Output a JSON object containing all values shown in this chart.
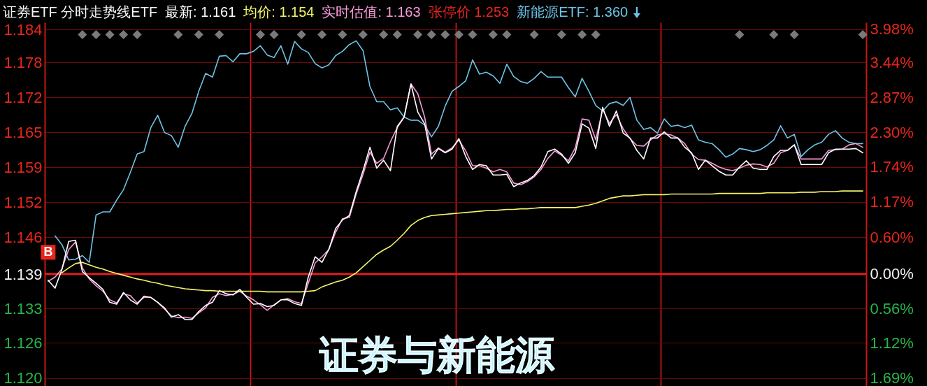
{
  "chart_data": {
    "type": "line",
    "title": "证券ETF 分时走势线ETF",
    "annotations": [
      "张停价 1.253",
      {
        "text": "B",
        "y": 0
      },
      "证券与新能源"
    ],
    "categories": [
      null,
      null,
      null,
      null,
      null,
      null,
      null,
      null,
      null,
      null,
      null,
      null,
      null,
      null,
      null,
      null,
      null,
      null,
      null,
      null,
      null,
      null,
      null,
      null,
      null,
      null,
      null,
      null,
      null,
      null,
      null,
      null,
      null,
      null,
      null,
      null,
      null,
      null,
      null,
      null,
      null,
      null,
      null,
      null,
      null,
      null,
      null,
      null,
      null,
      null,
      null,
      null,
      null,
      null,
      null,
      null,
      null,
      null,
      null,
      null,
      null,
      null,
      null,
      null,
      null,
      null,
      null,
      null,
      null,
      null,
      null,
      null,
      null,
      null,
      null,
      null,
      null,
      null,
      null,
      null,
      null,
      null,
      null,
      null,
      null,
      null,
      null,
      null,
      null,
      null,
      null,
      null,
      null,
      null,
      null,
      null,
      null,
      null,
      null,
      null,
      null,
      null,
      null,
      null,
      null,
      null,
      null,
      null,
      null,
      null,
      null,
      null,
      null,
      null,
      null,
      null,
      null,
      null,
      null,
      null
    ],
    "ylim": [
      -1.82,
      4.09
    ],
    "yticks": [
      {
        "value": 3.98,
        "label": "3.98%"
      },
      {
        "value": 3.44,
        "label": "3.44%"
      },
      {
        "value": 2.87,
        "label": "2.87%"
      },
      {
        "value": 2.3,
        "label": "2.30%"
      },
      {
        "value": 1.74,
        "label": "1.74%"
      },
      {
        "value": 1.17,
        "label": "1.17%"
      },
      {
        "value": 0.6,
        "label": "0.60%"
      },
      {
        "value": 0,
        "label": "0.00%"
      },
      {
        "value": -0.56,
        "label": "0.56%"
      },
      {
        "value": -1.12,
        "label": "1.12%"
      },
      {
        "value": -1.69,
        "label": "1.69%"
      }
    ],
    "y2lim": [
      1.1183,
      1.1856
    ],
    "y2ticks": [
      {
        "value": 1.1843,
        "label": "1.184"
      },
      {
        "value": 1.1782,
        "label": "1.178"
      },
      {
        "value": 1.1717,
        "label": "1.172"
      },
      {
        "value": 1.1652,
        "label": "1.165"
      },
      {
        "value": 1.1588,
        "label": "1.159"
      },
      {
        "value": 1.1523,
        "label": "1.152"
      },
      {
        "value": 1.1458,
        "label": "1.146"
      },
      {
        "value": 1.139,
        "label": "1.139"
      },
      {
        "value": 1.1326,
        "label": "1.133"
      },
      {
        "value": 1.1262,
        "label": "1.126"
      },
      {
        "value": 1.1198,
        "label": "1.120"
      }
    ],
    "tick_labels": "y",
    "grid": true,
    "legend": "top",
    "ref_lines": [
      {
        "axis": "y",
        "value": 0,
        "color": "#e3191b"
      }
    ],
    "series": [
      {
        "name": "最新: 1.161",
        "color": "#ffffff",
        "values": [
          -0.1,
          -0.23,
          0.07,
          0.53,
          0.55,
          0.04,
          -0.06,
          -0.15,
          -0.25,
          -0.46,
          -0.49,
          -0.3,
          -0.42,
          -0.49,
          -0.36,
          -0.38,
          -0.46,
          -0.55,
          -0.7,
          -0.66,
          -0.74,
          -0.74,
          -0.61,
          -0.51,
          -0.46,
          -0.27,
          -0.32,
          -0.34,
          -0.25,
          -0.38,
          -0.49,
          -0.48,
          -0.53,
          -0.51,
          -0.42,
          -0.42,
          -0.48,
          -0.51,
          -0.05,
          0.28,
          0.19,
          0.4,
          0.74,
          0.88,
          0.95,
          1.34,
          1.68,
          2.06,
          1.72,
          1.85,
          1.68,
          2.4,
          2.55,
          3.09,
          2.63,
          2.44,
          1.87,
          2.04,
          1.97,
          2.03,
          2.2,
          1.91,
          1.7,
          1.78,
          1.76,
          1.61,
          1.61,
          1.62,
          1.42,
          1.48,
          1.52,
          1.6,
          1.74,
          1.99,
          2.03,
          1.95,
          1.8,
          1.97,
          2.44,
          2.37,
          2.04,
          2.71,
          2.4,
          2.65,
          2.29,
          2.21,
          2.01,
          1.87,
          2.21,
          2.21,
          2.31,
          2.21,
          2.21,
          2.06,
          1.97,
          1.7,
          1.85,
          1.76,
          1.67,
          1.61,
          1.61,
          1.74,
          1.84,
          1.72,
          1.7,
          1.7,
          1.91,
          2.01,
          2.01,
          2.1,
          1.78,
          1.78,
          1.78,
          1.78,
          1.97,
          2.03,
          2.03,
          2.03,
          2.04,
          1.97
        ]
      },
      {
        "name": "均价: 1.154",
        "color": "#f4f46a",
        "values": [
          null,
          null,
          0.02,
          0.1,
          0.17,
          0.19,
          0.15,
          0.11,
          0.08,
          0.04,
          0.01,
          -0.02,
          -0.05,
          -0.08,
          -0.1,
          -0.13,
          -0.15,
          -0.18,
          -0.2,
          -0.22,
          -0.24,
          -0.25,
          -0.26,
          -0.27,
          -0.27,
          -0.28,
          -0.28,
          -0.28,
          -0.28,
          -0.28,
          -0.28,
          -0.28,
          -0.29,
          -0.29,
          -0.29,
          -0.29,
          -0.29,
          -0.29,
          -0.28,
          -0.27,
          -0.21,
          -0.17,
          -0.13,
          -0.1,
          -0.05,
          0.02,
          0.12,
          0.22,
          0.32,
          0.39,
          0.45,
          0.55,
          0.66,
          0.79,
          0.87,
          0.92,
          0.95,
          0.96,
          0.97,
          0.98,
          0.99,
          1.0,
          1.01,
          1.02,
          1.03,
          1.03,
          1.04,
          1.05,
          1.05,
          1.06,
          1.06,
          1.07,
          1.08,
          1.08,
          1.08,
          1.08,
          1.08,
          1.08,
          1.1,
          1.12,
          1.15,
          1.19,
          1.23,
          1.25,
          1.27,
          1.27,
          1.28,
          1.29,
          1.29,
          1.29,
          1.29,
          1.3,
          1.3,
          1.3,
          1.3,
          1.3,
          1.3,
          1.3,
          1.31,
          1.31,
          1.31,
          1.31,
          1.31,
          1.31,
          1.31,
          1.32,
          1.32,
          1.32,
          1.32,
          1.32,
          1.33,
          1.33,
          1.33,
          1.34,
          1.34,
          1.34,
          1.35,
          1.35,
          1.35,
          1.35
        ]
      },
      {
        "name": "实时估值: 1.163",
        "color": "#f59ad8",
        "values": [
          -0.12,
          -0.05,
          0.08,
          0.4,
          0.52,
          0.1,
          -0.08,
          -0.19,
          -0.28,
          -0.42,
          -0.47,
          -0.32,
          -0.35,
          -0.47,
          -0.38,
          -0.38,
          -0.46,
          -0.57,
          -0.68,
          -0.71,
          -0.7,
          -0.72,
          -0.63,
          -0.55,
          -0.38,
          -0.32,
          -0.35,
          -0.33,
          -0.28,
          -0.36,
          -0.42,
          -0.5,
          -0.59,
          -0.5,
          -0.42,
          -0.4,
          -0.45,
          -0.48,
          -0.15,
          0.18,
          0.28,
          0.4,
          0.68,
          0.9,
          0.92,
          1.3,
          1.62,
          1.98,
          1.8,
          1.88,
          2.15,
          2.38,
          2.55,
          3.09,
          2.93,
          2.55,
          1.95,
          2.05,
          1.98,
          2.05,
          2.18,
          2.0,
          1.76,
          1.76,
          1.72,
          1.66,
          1.7,
          1.66,
          1.48,
          1.45,
          1.5,
          1.58,
          1.7,
          1.88,
          2.0,
          1.93,
          1.84,
          2.05,
          2.52,
          2.5,
          2.18,
          2.68,
          2.45,
          2.59,
          2.36,
          2.2,
          2.09,
          2.08,
          2.18,
          2.26,
          2.28,
          2.26,
          2.21,
          2.12,
          1.95,
          1.86,
          1.85,
          1.8,
          1.74,
          1.7,
          1.68,
          1.72,
          1.77,
          1.79,
          1.78,
          1.74,
          1.8,
          1.97,
          2.01,
          2.1,
          1.87,
          1.87,
          1.87,
          1.87,
          2.01,
          2.02,
          2.03,
          2.1,
          2.12,
          2.06
        ]
      },
      {
        "name": "新能源ETF: 1.360",
        "color": "#6ec3e6",
        "values": [
          null,
          0.62,
          0.48,
          0.23,
          0.24,
          0.3,
          0.19,
          0.96,
          1.01,
          1.01,
          1.2,
          1.37,
          1.65,
          1.95,
          1.99,
          2.38,
          2.58,
          2.3,
          2.25,
          2.06,
          2.4,
          2.61,
          2.97,
          3.26,
          3.2,
          3.54,
          3.55,
          3.45,
          3.58,
          3.58,
          3.62,
          3.71,
          3.56,
          3.52,
          3.71,
          3.41,
          3.78,
          3.66,
          3.6,
          3.42,
          3.35,
          3.4,
          3.55,
          3.62,
          3.73,
          3.79,
          3.63,
          3.05,
          2.8,
          2.8,
          2.67,
          2.7,
          2.55,
          2.5,
          2.5,
          2.42,
          2.23,
          2.4,
          2.73,
          2.97,
          3.05,
          3.14,
          3.48,
          3.25,
          3.28,
          3.22,
          3.1,
          3.41,
          3.21,
          3.13,
          3.1,
          3.18,
          3.29,
          3.2,
          3.2,
          3.2,
          3.03,
          2.88,
          3.18,
          2.97,
          2.74,
          2.65,
          2.77,
          2.8,
          2.74,
          2.87,
          2.5,
          2.35,
          2.38,
          2.29,
          2.52,
          2.4,
          2.42,
          2.38,
          2.42,
          2.18,
          2.14,
          2.12,
          2.02,
          1.9,
          1.95,
          2.04,
          2.02,
          1.99,
          2.02,
          2.09,
          2.18,
          2.41,
          2.21,
          2.27,
          1.91,
          2.02,
          2.1,
          2.14,
          2.27,
          2.33,
          2.21,
          2.14,
          2.12,
          2.12
        ]
      },
      {
        "type": "scatter",
        "marker": "diamond",
        "color": "#7a7a7a",
        "values": [
          null,
          null,
          null,
          null,
          null,
          3.89,
          null,
          3.89,
          null,
          3.89,
          null,
          3.89,
          null,
          3.89,
          null,
          null,
          null,
          null,
          null,
          3.89,
          null,
          null,
          3.89,
          null,
          null,
          3.89,
          null,
          null,
          null,
          null,
          null,
          3.89,
          null,
          3.89,
          null,
          null,
          null,
          3.89,
          null,
          null,
          3.89,
          null,
          null,
          3.89,
          null,
          null,
          3.89,
          null,
          null,
          3.89,
          null,
          3.89,
          null,
          null,
          3.89,
          null,
          3.89,
          null,
          3.89,
          null,
          3.89,
          null,
          3.89,
          null,
          null,
          3.89,
          null,
          3.89,
          null,
          null,
          null,
          3.89,
          null,
          null,
          null,
          3.89,
          null,
          null,
          3.89,
          null,
          3.89,
          null,
          null,
          null,
          null,
          null,
          null,
          null,
          null,
          null,
          null,
          null,
          null,
          null,
          null,
          null,
          null,
          null,
          null,
          null,
          null,
          3.89,
          null,
          null,
          null,
          null,
          3.89,
          null,
          null,
          3.89,
          null,
          null,
          null,
          null,
          null,
          null,
          null,
          null,
          null,
          3.89
        ]
      }
    ]
  }
}
